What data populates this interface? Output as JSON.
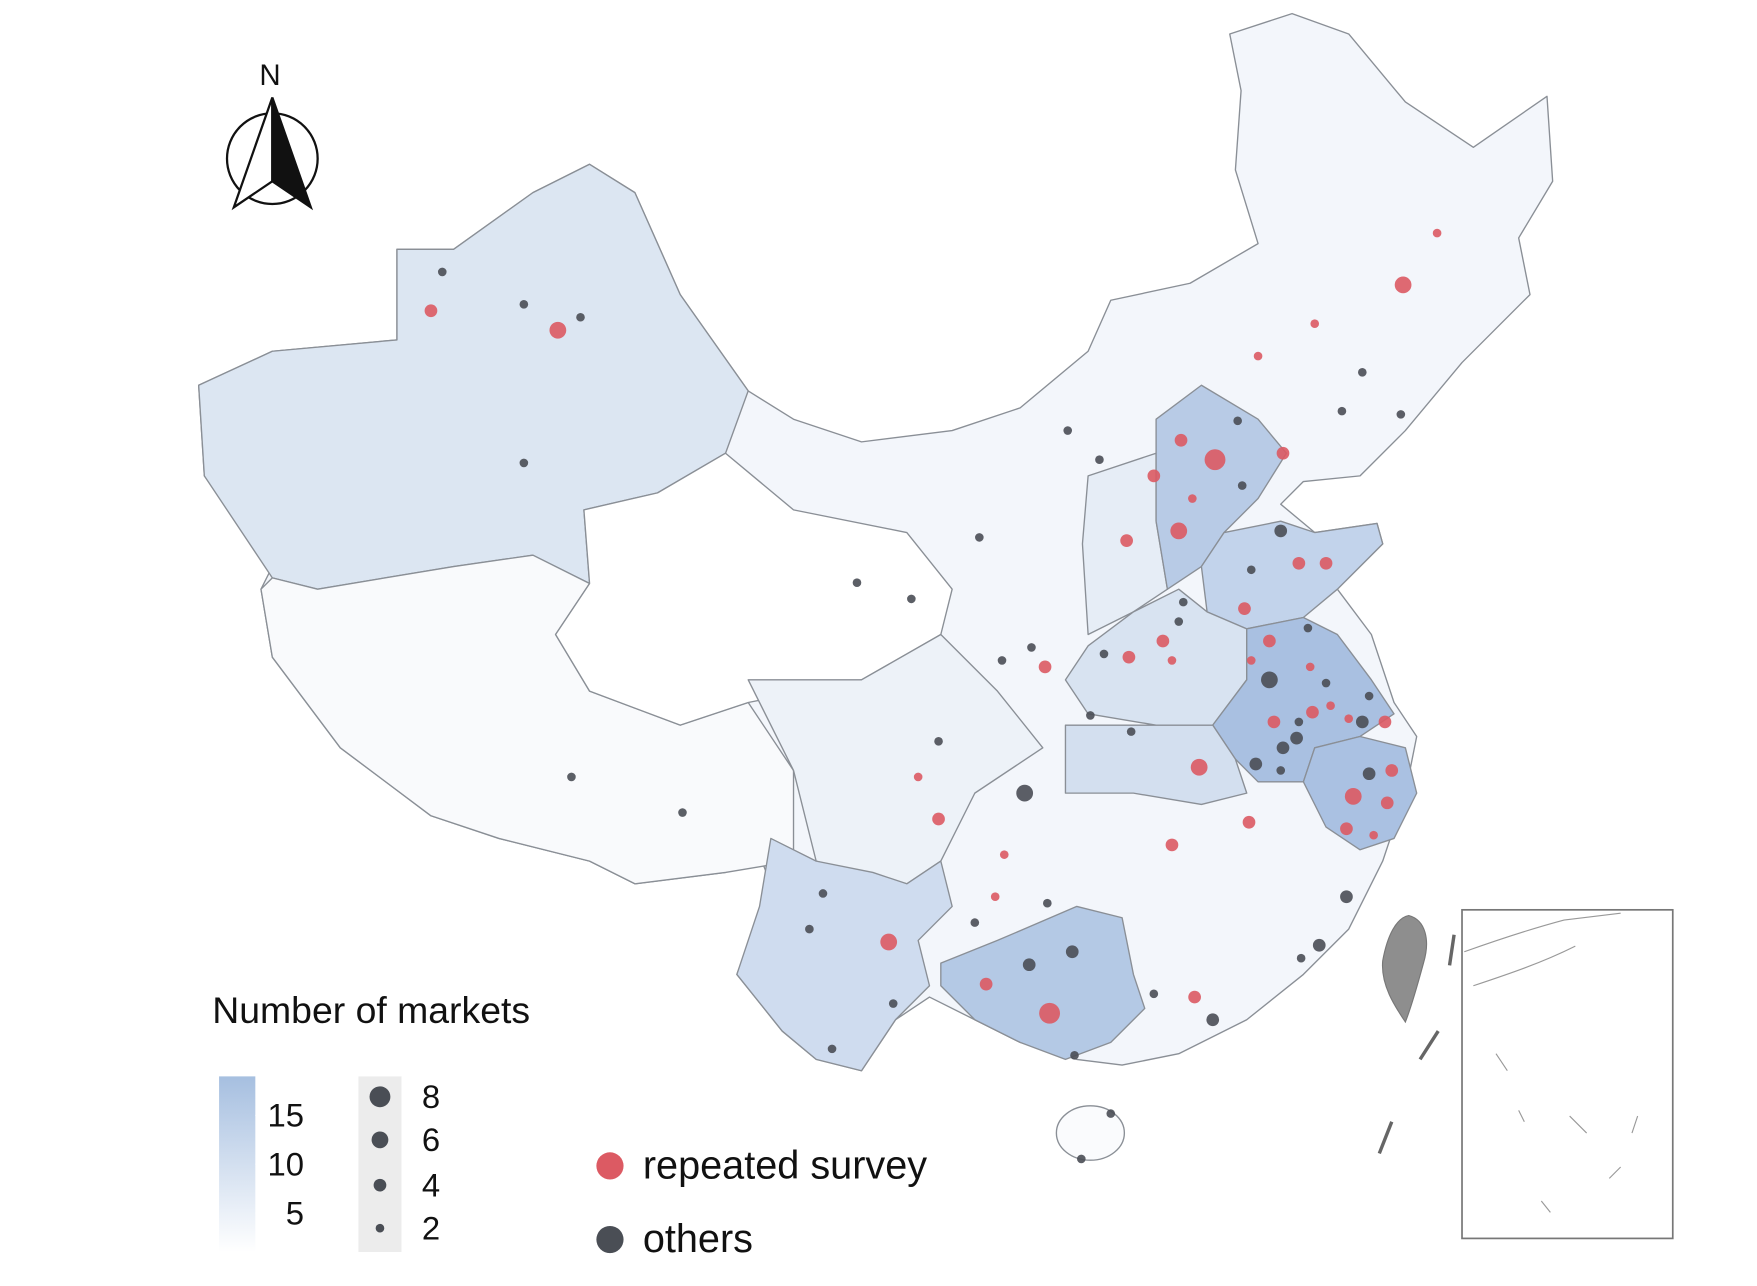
{
  "compass": "N",
  "legend": {
    "title": "Number of markets",
    "color_scale": {
      "lim": [
        1,
        19
      ],
      "ticks": [
        5,
        10,
        15
      ],
      "colors": [
        "#ffffff",
        "#a6bfe0"
      ]
    },
    "size_ticks": [
      8,
      6,
      4,
      2
    ]
  },
  "series": [
    {
      "name": "repeated survey",
      "color": "#dc5a63",
      "lon": [
        81.8,
        87.4,
        126.2,
        124.7,
        120.8,
        118.3,
        116.4,
        114.9,
        119.4,
        113.7,
        115.4,
        114.8,
        112.5,
        120.1,
        121.3,
        117.7,
        108.9,
        112.6,
        114.1,
        114.5,
        118.8,
        120.6,
        118.0,
        119.0,
        120.7,
        121.5,
        122.3,
        123.9,
        124.2,
        115.7,
        122.5,
        124.0,
        122.2,
        123.4,
        117.9,
        114.5,
        103.3,
        104.2,
        107.1,
        106.7,
        102.0,
        106.3,
        109.1,
        115.5
      ],
      "lat": [
        44.6,
        44.0,
        47.0,
        45.4,
        44.2,
        43.2,
        40.0,
        40.6,
        40.2,
        39.5,
        38.8,
        37.8,
        37.5,
        36.8,
        36.8,
        35.4,
        33.6,
        33.9,
        34.4,
        33.8,
        34.4,
        33.6,
        33.8,
        31.9,
        32.2,
        32.4,
        32.0,
        31.9,
        30.4,
        30.5,
        29.6,
        29.4,
        28.6,
        28.4,
        28.8,
        28.1,
        30.2,
        28.9,
        27.8,
        26.5,
        25.1,
        23.8,
        22.9,
        23.4
      ],
      "size": [
        4,
        6,
        2,
        6,
        2,
        2,
        8,
        4,
        4,
        4,
        2,
        6,
        4,
        4,
        4,
        4,
        4,
        4,
        4,
        2,
        4,
        2,
        2,
        4,
        4,
        2,
        2,
        4,
        4,
        6,
        6,
        4,
        4,
        2,
        4,
        4,
        2,
        4,
        2,
        2,
        6,
        4,
        8,
        4
      ]
    },
    {
      "name": "others",
      "color": "#4a4e55",
      "lon": [
        82.3,
        85.9,
        88.4,
        85.9,
        109.9,
        111.3,
        117.4,
        122.9,
        122.0,
        124.6,
        117.6,
        119.3,
        118.0,
        106.0,
        100.6,
        103.0,
        115.0,
        114.8,
        120.5,
        107.0,
        108.3,
        111.5,
        118.8,
        121.3,
        123.2,
        122.9,
        110.9,
        112.7,
        120.1,
        120.0,
        119.4,
        118.2,
        119.3,
        123.2,
        104.2,
        108.0,
        109.0,
        105.8,
        99.1,
        98.5,
        102.2,
        99.5,
        108.2,
        110.1,
        113.7,
        116.3,
        110.2,
        122.2,
        121.0,
        120.2,
        111.8,
        110.5,
        88.0,
        92.9
      ],
      "lat": [
        45.8,
        44.8,
        44.4,
        39.9,
        40.9,
        40.0,
        41.2,
        42.7,
        41.5,
        41.4,
        39.2,
        37.8,
        36.6,
        37.6,
        36.2,
        35.7,
        35.6,
        35.0,
        34.8,
        33.8,
        34.2,
        34.0,
        33.2,
        33.1,
        32.7,
        31.9,
        32.1,
        31.6,
        31.9,
        31.4,
        31.1,
        30.6,
        30.4,
        30.3,
        31.3,
        29.7,
        26.3,
        25.7,
        26.6,
        25.5,
        23.2,
        21.8,
        24.4,
        24.8,
        23.5,
        22.7,
        21.6,
        26.5,
        25.0,
        24.6,
        19.8,
        18.4,
        30.2,
        29.1
      ],
      "size": [
        2,
        2,
        2,
        2,
        2,
        2,
        2,
        2,
        2,
        2,
        2,
        4,
        2,
        2,
        2,
        2,
        2,
        2,
        2,
        2,
        2,
        2,
        6,
        2,
        2,
        4,
        2,
        2,
        2,
        4,
        4,
        4,
        2,
        4,
        2,
        6,
        2,
        2,
        2,
        2,
        2,
        2,
        4,
        4,
        2,
        4,
        2,
        4,
        4,
        2,
        2,
        2,
        2,
        2
      ]
    }
  ]
}
